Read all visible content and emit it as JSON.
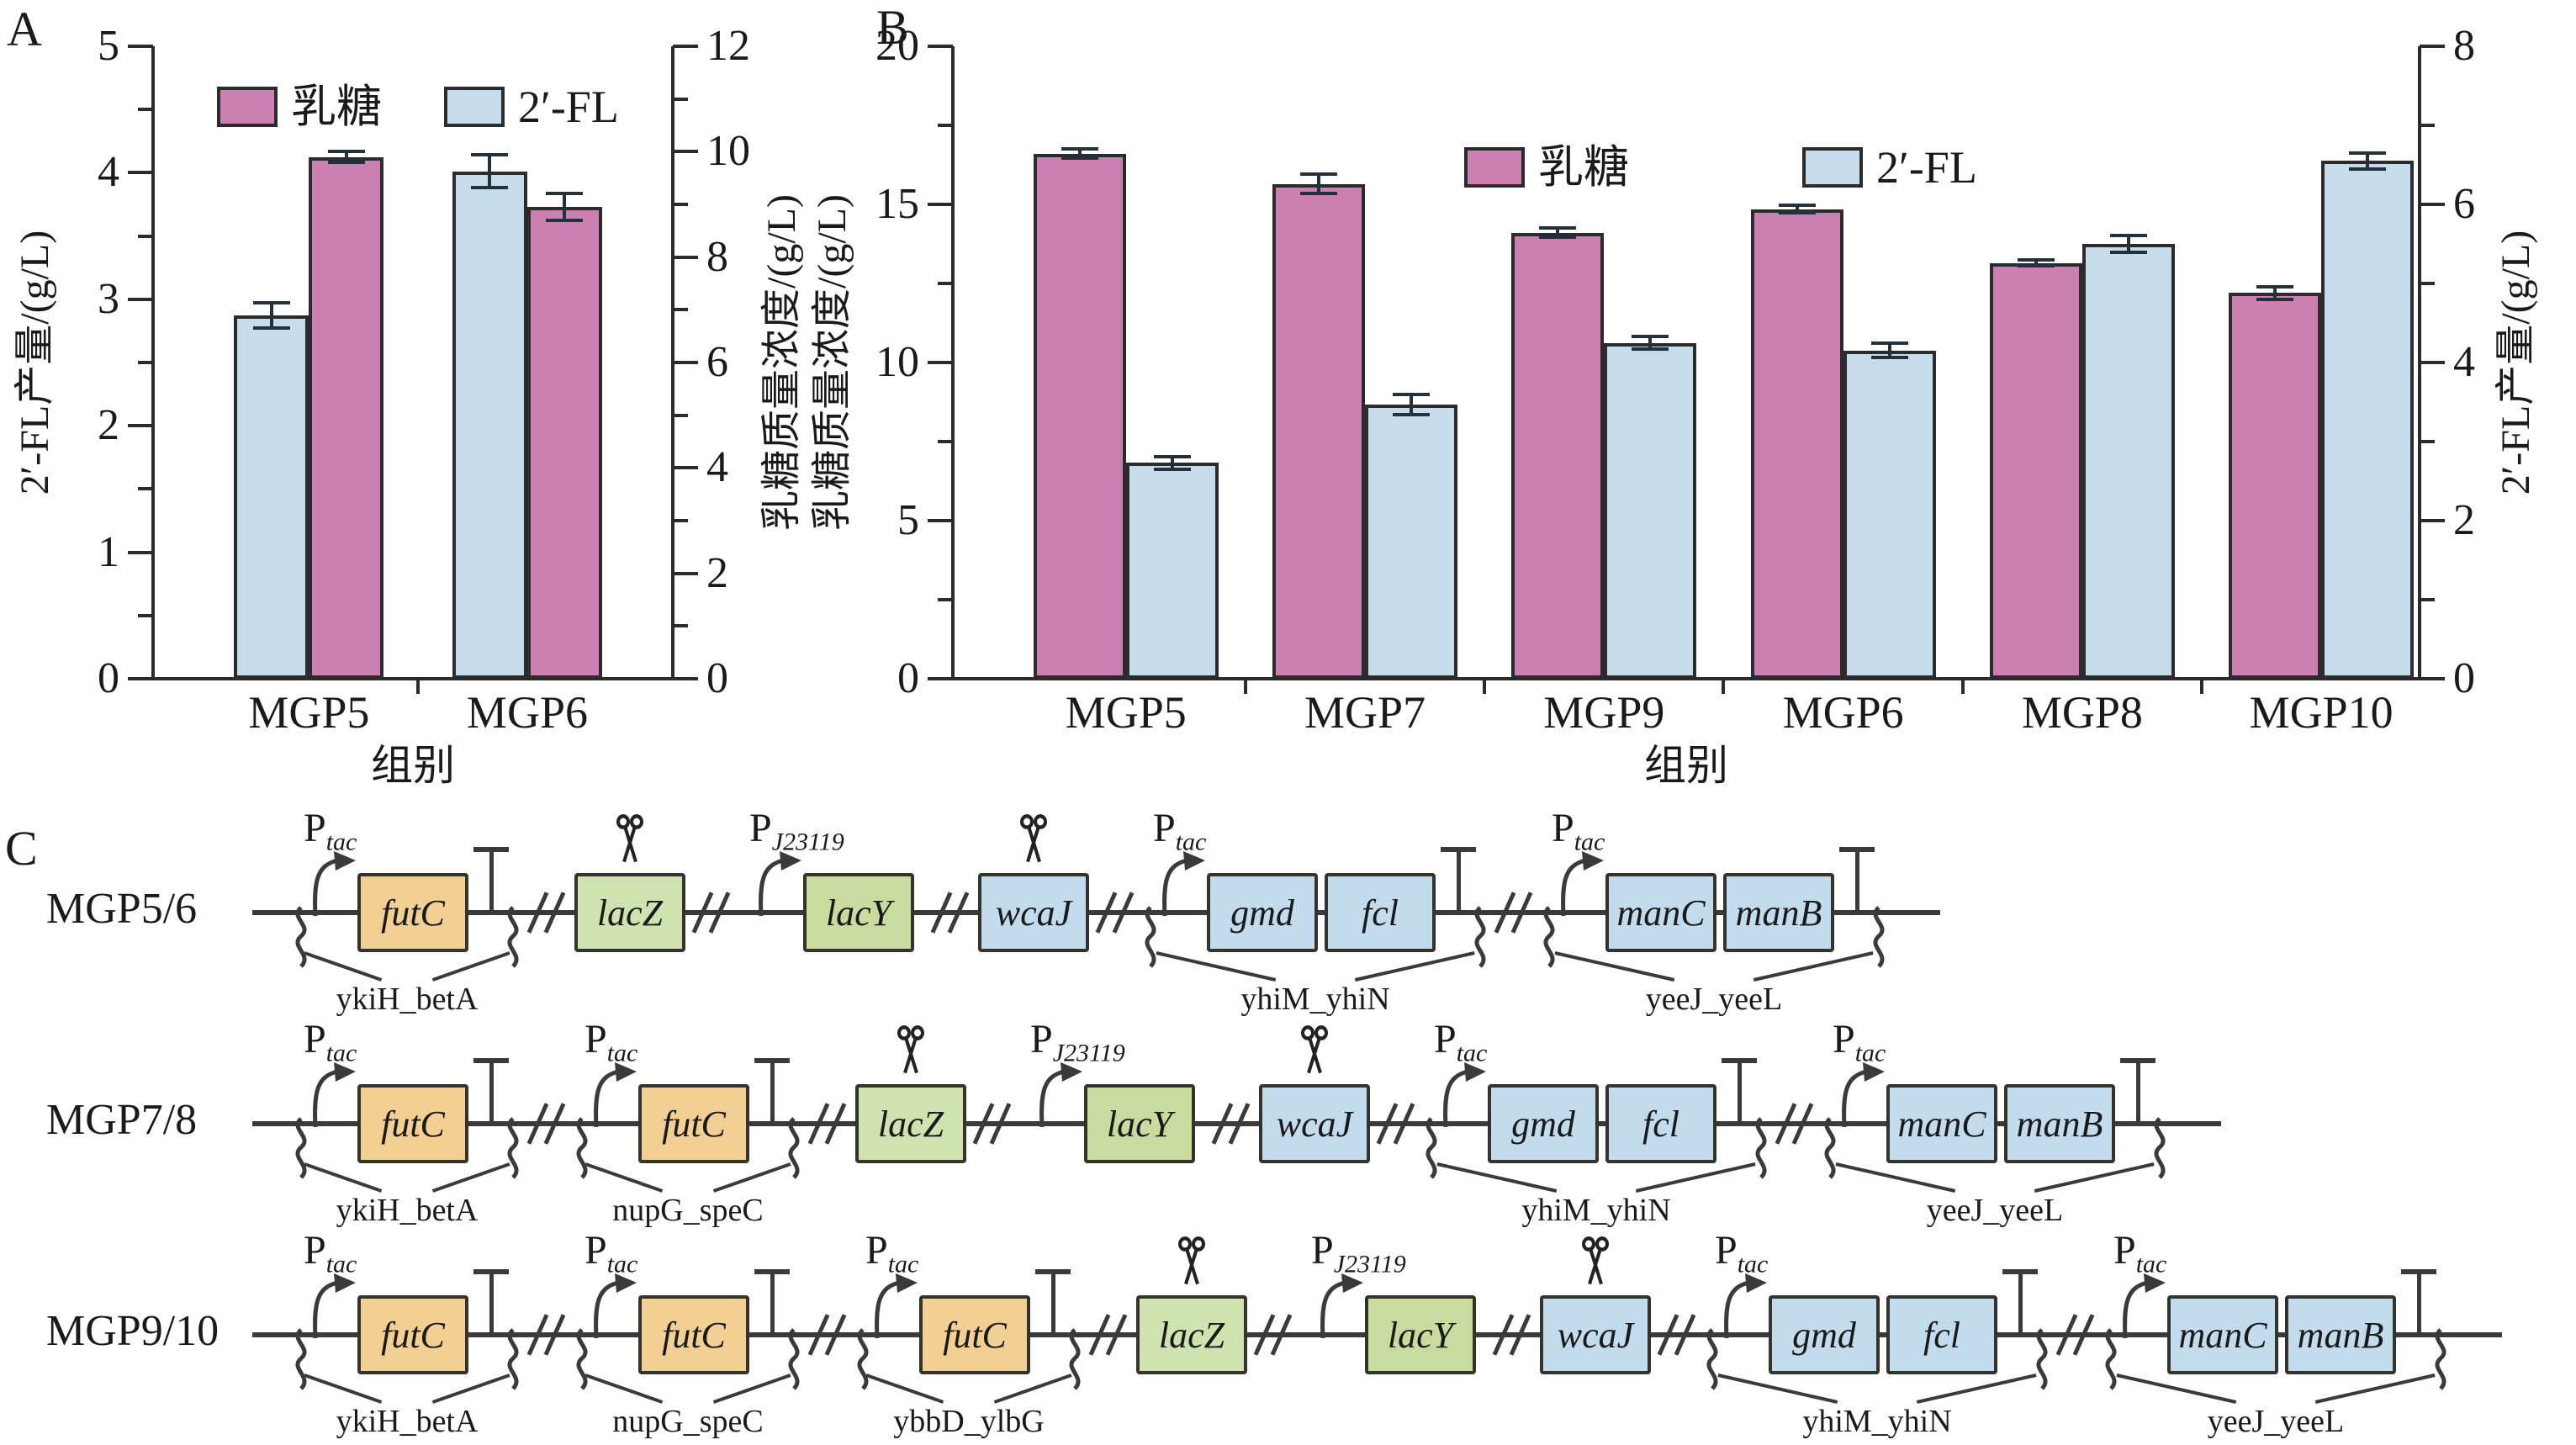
{
  "panels": {
    "a_label": "A",
    "b_label": "B",
    "c_label": "C"
  },
  "colors": {
    "lactose": "#cb80b1",
    "fl": "#c6dcea",
    "axis": "#2b2b2b",
    "error": "#23313c",
    "line": "#3a3a3a",
    "gene_orange": "#f2cf92",
    "gene_green": "#cfe3b0",
    "gene_green2": "#c9dca0",
    "gene_blue": "#c2dcee"
  },
  "icons": {
    "scissors": "✂",
    "promoter": "bent-arrow",
    "terminator": "T-bar"
  },
  "chart_data": [
    {
      "type": "bar",
      "panel": "A",
      "xlabel": "组别",
      "categories": [
        "MGP5",
        "MGP6"
      ],
      "left_axis": {
        "label": "2′-FL产量/(g/L)",
        "min": 0,
        "max": 5,
        "ticks": [
          0,
          1,
          2,
          3,
          4,
          5
        ],
        "minor_step": 0.5
      },
      "right_axis": {
        "label": "乳糖质量浓度/(g/L)",
        "min": 0,
        "max": 12,
        "ticks": [
          0,
          2,
          4,
          6,
          8,
          10,
          12
        ],
        "minor_step": 1
      },
      "legend": [
        {
          "label": "乳糖",
          "color": "lactose"
        },
        {
          "label": "2′-FL",
          "color": "fl"
        }
      ],
      "series": [
        {
          "name": "2′-FL",
          "axis": "left",
          "color": "fl",
          "values": [
            2.87,
            4.01
          ],
          "errors": [
            0.1,
            0.13
          ]
        },
        {
          "name": "乳糖",
          "axis": "right",
          "color": "lactose",
          "values": [
            9.9,
            8.95
          ],
          "errors": [
            0.1,
            0.25
          ]
        }
      ]
    },
    {
      "type": "bar",
      "panel": "B",
      "xlabel": "组别",
      "categories": [
        "MGP5",
        "MGP7",
        "MGP9",
        "MGP6",
        "MGP8",
        "MGP10"
      ],
      "left_axis": {
        "label": "乳糖质量浓度/(g/L)",
        "min": 0,
        "max": 20,
        "ticks": [
          0,
          5,
          10,
          15,
          20
        ],
        "minor_step": 2.5
      },
      "right_axis": {
        "label": "2′-FL产量/(g/L)",
        "min": 0,
        "max": 8,
        "ticks": [
          0,
          2,
          4,
          6,
          8
        ],
        "minor_step": 1
      },
      "legend": [
        {
          "label": "乳糖",
          "color": "lactose"
        },
        {
          "label": "2′-FL",
          "color": "fl"
        }
      ],
      "series": [
        {
          "name": "乳糖",
          "axis": "left",
          "color": "lactose",
          "values": [
            16.6,
            15.65,
            14.1,
            14.85,
            13.15,
            12.2
          ],
          "errors": [
            0.15,
            0.3,
            0.15,
            0.12,
            0.1,
            0.2
          ]
        },
        {
          "name": "2′-FL",
          "axis": "right",
          "color": "fl",
          "values": [
            2.73,
            3.47,
            4.25,
            4.15,
            5.5,
            6.55
          ],
          "errors": [
            0.08,
            0.13,
            0.08,
            0.09,
            0.11,
            0.1
          ]
        }
      ]
    }
  ],
  "construct_diagram": {
    "promoter_prefix": "P",
    "gene_colors": {
      "futC": "gene_orange",
      "lacZ": "gene_green",
      "lacY": "gene_green2",
      "wcaJ": "gene_blue",
      "gmd": "gene_blue",
      "fcl": "gene_blue",
      "manC": "gene_blue",
      "manB": "gene_blue"
    },
    "rows": [
      {
        "label": "MGP5/6",
        "elements": [
          {
            "type": "cassette",
            "promoter": "tac",
            "genes": [
              "futC"
            ],
            "terminator": true,
            "site": "ykiH_betA"
          },
          {
            "type": "break"
          },
          {
            "type": "gene_cut",
            "gene": "lacZ"
          },
          {
            "type": "break"
          },
          {
            "type": "cassette",
            "promoter": "J23119",
            "genes": [
              "lacY"
            ],
            "terminator": false,
            "site": null
          },
          {
            "type": "break"
          },
          {
            "type": "gene_cut",
            "gene": "wcaJ"
          },
          {
            "type": "break"
          },
          {
            "type": "cassette",
            "promoter": "tac",
            "genes": [
              "gmd",
              "fcl"
            ],
            "terminator": true,
            "site": "yhiM_yhiN"
          },
          {
            "type": "break"
          },
          {
            "type": "cassette",
            "promoter": "tac",
            "genes": [
              "manC",
              "manB"
            ],
            "terminator": true,
            "site": "yeeJ_yeeL"
          }
        ]
      },
      {
        "label": "MGP7/8",
        "elements": [
          {
            "type": "cassette",
            "promoter": "tac",
            "genes": [
              "futC"
            ],
            "terminator": true,
            "site": "ykiH_betA"
          },
          {
            "type": "break"
          },
          {
            "type": "cassette",
            "promoter": "tac",
            "genes": [
              "futC"
            ],
            "terminator": true,
            "site": "nupG_speC"
          },
          {
            "type": "break"
          },
          {
            "type": "gene_cut",
            "gene": "lacZ"
          },
          {
            "type": "break"
          },
          {
            "type": "cassette",
            "promoter": "J23119",
            "genes": [
              "lacY"
            ],
            "terminator": false,
            "site": null
          },
          {
            "type": "break"
          },
          {
            "type": "gene_cut",
            "gene": "wcaJ"
          },
          {
            "type": "break"
          },
          {
            "type": "cassette",
            "promoter": "tac",
            "genes": [
              "gmd",
              "fcl"
            ],
            "terminator": true,
            "site": "yhiM_yhiN"
          },
          {
            "type": "break"
          },
          {
            "type": "cassette",
            "promoter": "tac",
            "genes": [
              "manC",
              "manB"
            ],
            "terminator": true,
            "site": "yeeJ_yeeL"
          }
        ]
      },
      {
        "label": "MGP9/10",
        "elements": [
          {
            "type": "cassette",
            "promoter": "tac",
            "genes": [
              "futC"
            ],
            "terminator": true,
            "site": "ykiH_betA"
          },
          {
            "type": "break"
          },
          {
            "type": "cassette",
            "promoter": "tac",
            "genes": [
              "futC"
            ],
            "terminator": true,
            "site": "nupG_speC"
          },
          {
            "type": "break"
          },
          {
            "type": "cassette",
            "promoter": "tac",
            "genes": [
              "futC"
            ],
            "terminator": true,
            "site": "ybbD_ylbG"
          },
          {
            "type": "break"
          },
          {
            "type": "gene_cut",
            "gene": "lacZ"
          },
          {
            "type": "break"
          },
          {
            "type": "cassette",
            "promoter": "J23119",
            "genes": [
              "lacY"
            ],
            "terminator": false,
            "site": null
          },
          {
            "type": "break"
          },
          {
            "type": "gene_cut",
            "gene": "wcaJ"
          },
          {
            "type": "break"
          },
          {
            "type": "cassette",
            "promoter": "tac",
            "genes": [
              "gmd",
              "fcl"
            ],
            "terminator": true,
            "site": "yhiM_yhiN"
          },
          {
            "type": "break"
          },
          {
            "type": "cassette",
            "promoter": "tac",
            "genes": [
              "manC",
              "manB"
            ],
            "terminator": true,
            "site": "yeeJ_yeeL"
          }
        ]
      }
    ]
  }
}
